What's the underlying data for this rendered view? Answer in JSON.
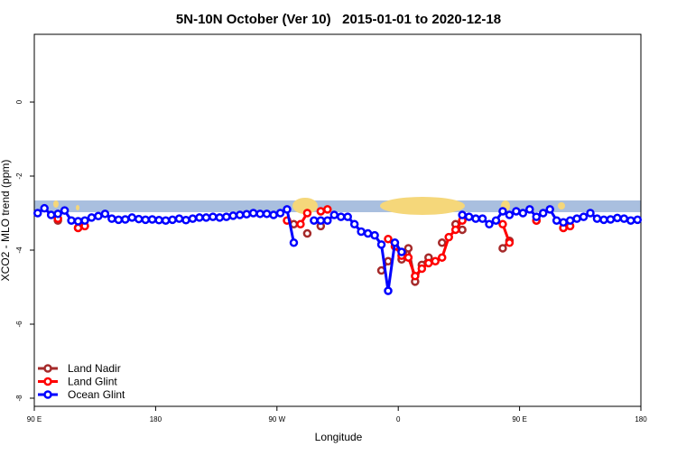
{
  "chart_data": {
    "type": "line",
    "title": "5N-10N October (Ver 10)   2015-01-01 to 2020-12-18",
    "x_label": "Longitude",
    "y_label": "XCO2 - MLO trend (ppm)",
    "xlim": [
      90,
      540
    ],
    "ylim": [
      -8.22,
      1.83
    ],
    "xticks": [
      {
        "value": 90,
        "label": "90 E"
      },
      {
        "value": 180,
        "label": "180"
      },
      {
        "value": 270,
        "label": "90 W"
      },
      {
        "value": 360,
        "label": "0"
      },
      {
        "value": 450,
        "label": "90 E"
      },
      {
        "value": 540,
        "label": "180"
      }
    ],
    "yticks": [
      0,
      -2,
      -4,
      -6,
      -8
    ],
    "legend": "bottom-left",
    "x": [
      92.5,
      97.5,
      102.5,
      107.5,
      112.5,
      117.5,
      122.5,
      127.5,
      132.5,
      137.5,
      142.5,
      147.5,
      152.5,
      157.5,
      162.5,
      167.5,
      172.5,
      177.5,
      182.5,
      187.5,
      192.5,
      197.5,
      202.5,
      207.5,
      212.5,
      217.5,
      222.5,
      227.5,
      232.5,
      237.5,
      242.5,
      247.5,
      252.5,
      257.5,
      262.5,
      267.5,
      272.5,
      277.5,
      282.5,
      287.5,
      292.5,
      297.5,
      302.5,
      307.5,
      312.5,
      317.5,
      322.5,
      327.5,
      332.5,
      337.5,
      342.5,
      347.5,
      352.5,
      357.5,
      362.5,
      367.5,
      372.5,
      377.5,
      382.5,
      387.5,
      392.5,
      397.5,
      402.5,
      407.5,
      412.5,
      417.5,
      422.5,
      427.5,
      432.5,
      437.5,
      442.5,
      447.5,
      452.5,
      457.5,
      462.5,
      467.5,
      472.5,
      477.5,
      482.5,
      487.5,
      492.5,
      497.5,
      502.5,
      507.5,
      512.5,
      517.5,
      522.5,
      527.5,
      532.5,
      537.5
    ],
    "series": [
      {
        "name": "Land Nadir",
        "color": "#a52a2a",
        "values": [
          null,
          null,
          null,
          -3.2,
          null,
          null,
          -3.4,
          null,
          null,
          null,
          null,
          null,
          null,
          null,
          null,
          null,
          null,
          null,
          null,
          null,
          null,
          null,
          null,
          null,
          null,
          null,
          null,
          null,
          null,
          null,
          null,
          null,
          null,
          null,
          null,
          null,
          null,
          null,
          -3.3,
          null,
          -3.55,
          null,
          -3.35,
          null,
          null,
          null,
          null,
          null,
          null,
          null,
          null,
          -4.55,
          -4.3,
          null,
          -4.25,
          -3.95,
          -4.85,
          -4.4,
          -4.2,
          null,
          -3.8,
          null,
          -3.3,
          -3.45,
          null,
          null,
          null,
          null,
          null,
          -3.95,
          -3.75,
          null,
          null,
          null,
          -3.2,
          null,
          null,
          null,
          -3.4,
          null,
          null,
          null,
          null,
          null,
          null,
          null,
          null,
          null,
          null,
          null
        ]
      },
      {
        "name": "Land Glint",
        "color": "#ff0000",
        "values": [
          null,
          null,
          null,
          -3.15,
          null,
          null,
          -3.4,
          -3.35,
          null,
          null,
          null,
          null,
          null,
          null,
          null,
          null,
          null,
          null,
          null,
          null,
          null,
          null,
          null,
          null,
          null,
          null,
          null,
          null,
          null,
          null,
          null,
          null,
          null,
          null,
          null,
          null,
          null,
          -3.2,
          null,
          -3.3,
          -3.0,
          null,
          -2.95,
          -2.9,
          null,
          null,
          null,
          null,
          null,
          null,
          null,
          null,
          -3.7,
          -3.9,
          -4.15,
          -4.2,
          -4.7,
          -4.5,
          -4.35,
          -4.3,
          -4.2,
          -3.65,
          -3.45,
          -3.2,
          null,
          null,
          null,
          null,
          null,
          -3.3,
          -3.8,
          null,
          null,
          null,
          -3.2,
          null,
          null,
          null,
          -3.4,
          -3.35,
          null,
          null,
          null,
          null,
          null,
          null,
          null,
          null,
          null,
          null
        ]
      },
      {
        "name": "Ocean Glint",
        "color": "#0000ff",
        "values": [
          -3.0,
          -2.87,
          -3.05,
          -3.02,
          -2.93,
          -3.2,
          -3.22,
          -3.2,
          -3.12,
          -3.08,
          -3.02,
          -3.15,
          -3.18,
          -3.17,
          -3.12,
          -3.16,
          -3.18,
          -3.17,
          -3.19,
          -3.2,
          -3.18,
          -3.15,
          -3.19,
          -3.15,
          -3.12,
          -3.12,
          -3.1,
          -3.12,
          -3.1,
          -3.07,
          -3.05,
          -3.03,
          -3.0,
          -3.02,
          -3.02,
          -3.05,
          -3.0,
          -2.9,
          -3.8,
          null,
          null,
          -3.2,
          -3.2,
          -3.2,
          -3.05,
          -3.1,
          -3.1,
          -3.3,
          -3.5,
          -3.55,
          -3.6,
          -3.85,
          -5.1,
          -3.8,
          -4.05,
          null,
          null,
          null,
          null,
          null,
          null,
          null,
          null,
          -3.05,
          -3.1,
          -3.15,
          -3.15,
          -3.3,
          -3.2,
          -2.95,
          -3.05,
          -2.95,
          -3.0,
          -2.9,
          -3.1,
          -3.0,
          -2.9,
          -3.2,
          -3.25,
          -3.2,
          -3.15,
          -3.1,
          -3.0,
          -3.15,
          -3.18,
          -3.17,
          -3.13,
          -3.15,
          -3.2,
          -3.18
        ]
      }
    ]
  }
}
